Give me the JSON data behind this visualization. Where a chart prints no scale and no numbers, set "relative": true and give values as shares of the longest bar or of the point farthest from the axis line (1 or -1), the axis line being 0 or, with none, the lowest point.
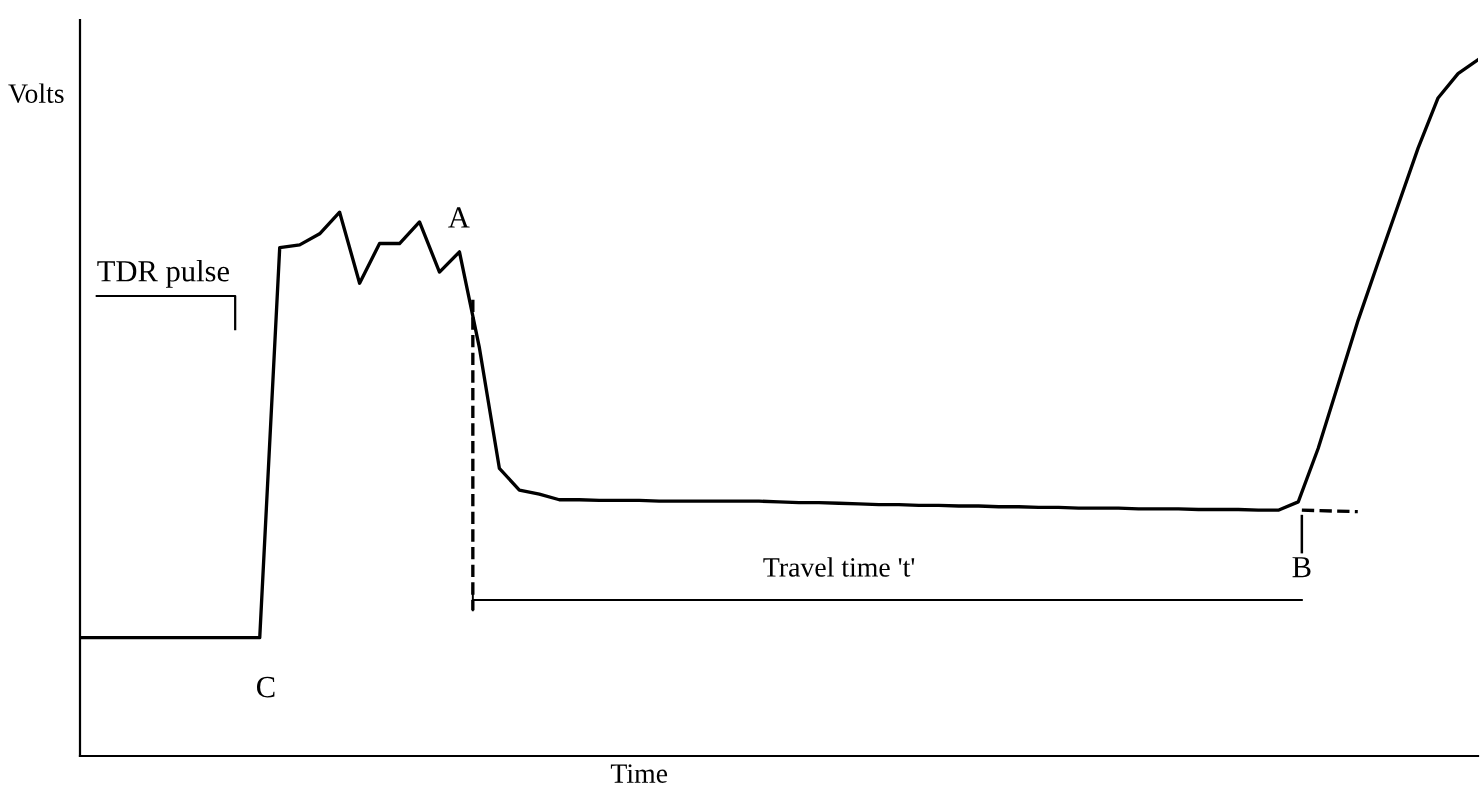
{
  "chart_data": {
    "type": "line",
    "relative": true,
    "xlabel": "Time",
    "ylabel": "Volts",
    "categories": [
      null,
      null,
      null,
      null,
      null,
      null,
      null,
      null,
      null,
      null,
      null,
      null,
      null,
      null,
      null,
      null,
      null,
      null,
      null,
      null,
      null,
      null,
      null,
      null,
      null,
      null,
      null,
      null,
      null,
      null,
      null,
      null,
      null,
      null,
      null,
      null,
      null,
      null,
      null,
      null,
      null,
      null,
      null,
      null,
      null,
      null,
      null,
      null,
      null,
      null,
      null,
      null,
      null,
      null,
      null,
      null,
      null,
      null,
      null,
      null,
      null,
      null,
      null,
      null,
      null,
      null,
      null,
      null,
      null,
      null,
      null
    ],
    "line_style": "solid",
    "marker": "none",
    "series": [
      {
        "color": "#000000",
        "values": [
          0.17,
          0.17,
          0.17,
          0.17,
          0.17,
          0.17,
          0.17,
          0.17,
          0.17,
          0.17,
          0.73,
          0.734,
          0.75,
          0.781,
          0.679,
          0.736,
          0.736,
          0.767,
          0.695,
          0.724,
          0.586,
          0.413,
          0.382,
          0.376,
          0.368,
          0.368,
          0.367,
          0.367,
          0.367,
          0.366,
          0.366,
          0.366,
          0.366,
          0.366,
          0.366,
          0.365,
          0.364,
          0.364,
          0.363,
          0.362,
          0.361,
          0.361,
          0.36,
          0.36,
          0.359,
          0.359,
          0.358,
          0.358,
          0.357,
          0.357,
          0.356,
          0.356,
          0.356,
          0.355,
          0.355,
          0.355,
          0.354,
          0.354,
          0.354,
          0.353,
          0.353,
          0.365,
          0.442,
          0.534,
          0.626,
          0.709,
          0.791,
          0.873,
          0.945,
          0.98,
          1
        ]
      }
    ],
    "annotations": [
      "TDR pulse",
      "A",
      "B",
      "C",
      "Travel time 't'"
    ]
  }
}
